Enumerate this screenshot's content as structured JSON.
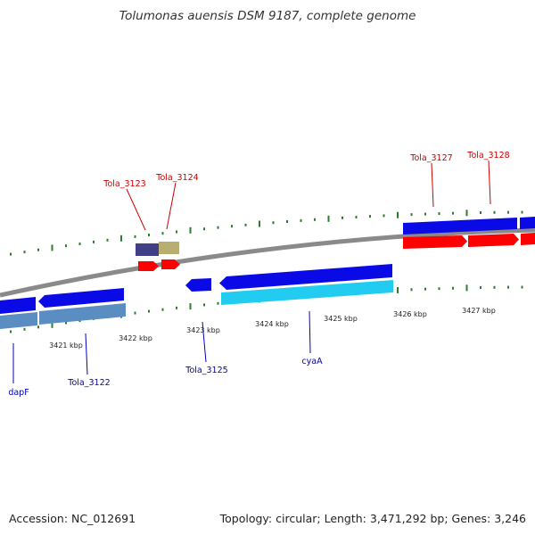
{
  "header": {
    "title": "Tolumonas auensis DSM 9187, complete genome"
  },
  "footer": {
    "accession": "Accession: NC_012691",
    "summary": "Topology: circular; Length: 3,471,292 bp; Genes: 3,246"
  },
  "colors": {
    "backbone": "#8a8a8a",
    "tick_marks": "#2e7d2e",
    "forward_label": "#cc0000",
    "reverse_label": "#0000bb",
    "cds_blue": "#0a0ae6",
    "cds_red": "#ff0000",
    "cds_cyan": "#22ccf0",
    "cds_steel": "#5a8ec2",
    "cds_purple": "#3f3f88",
    "cds_khaki": "#b8ae72"
  },
  "scale": {
    "kbp_labels": [
      "3421 kbp",
      "3422 kbp",
      "3423 kbp",
      "3424 kbp",
      "3425 kbp",
      "3426 kbp",
      "3427 kbp"
    ]
  },
  "features": {
    "forward_labels": [
      "Tola_3123",
      "Tola_3124",
      "Tola_3127",
      "Tola_3128"
    ],
    "reverse_labels": [
      "dapF",
      "Tola_3122",
      "Tola_3125",
      "cyaA"
    ]
  }
}
